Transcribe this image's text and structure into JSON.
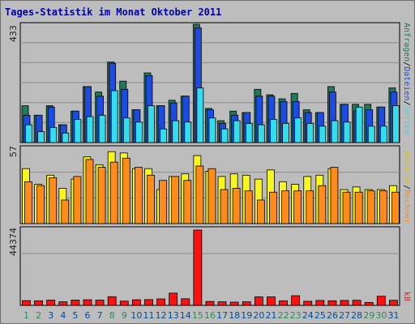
{
  "title": "Tages-Statistik im Monat Oktober 2011",
  "colors": {
    "weekday_label": "#004c99",
    "weekend_label": "#2e8b57",
    "anfragen": "#1f7a55",
    "dateien": "#1b4be0",
    "seiten": "#33ddee",
    "besuche": "#f7f71f",
    "rechner": "#ff8c1a",
    "kb": "#ff1010"
  },
  "right_labels": {
    "anfragen": "Anfragen",
    "dateien": "Dateien",
    "seiten": "Seiten",
    "besuche": "Besuche",
    "rechner": "Rechner",
    "kb": "kB"
  },
  "right_label_separator": "/",
  "chart_data": [
    {
      "type": "bar",
      "panel": "hits",
      "ymax_label": "433",
      "ylim": [
        0,
        433
      ],
      "categories": [
        "1",
        "2",
        "3",
        "4",
        "5",
        "6",
        "7",
        "8",
        "9",
        "10",
        "11",
        "12",
        "13",
        "14",
        "15",
        "16",
        "17",
        "18",
        "19",
        "20",
        "21",
        "22",
        "23",
        "24",
        "25",
        "26",
        "27",
        "28",
        "29",
        "30",
        "31"
      ],
      "weekend_days": [
        "1",
        "2",
        "8",
        "9",
        "15",
        "16",
        "22",
        "23",
        "29",
        "30"
      ],
      "series": [
        {
          "name": "Anfragen",
          "values": [
            135,
            100,
            135,
            65,
            115,
            205,
            185,
            295,
            225,
            120,
            255,
            135,
            155,
            170,
            433,
            125,
            80,
            115,
            110,
            195,
            175,
            160,
            180,
            120,
            110,
            205,
            140,
            140,
            140,
            130,
            200
          ]
        },
        {
          "name": "Dateien",
          "values": [
            100,
            100,
            130,
            65,
            115,
            205,
            170,
            290,
            195,
            120,
            245,
            135,
            145,
            170,
            420,
            120,
            70,
            100,
            110,
            170,
            170,
            150,
            150,
            110,
            110,
            185,
            140,
            115,
            120,
            130,
            185
          ]
        },
        {
          "name": "Seiten",
          "values": [
            65,
            40,
            55,
            35,
            85,
            95,
            100,
            190,
            90,
            75,
            135,
            50,
            80,
            75,
            200,
            90,
            50,
            80,
            70,
            65,
            85,
            70,
            90,
            70,
            60,
            80,
            75,
            130,
            60,
            60,
            135
          ]
        }
      ]
    },
    {
      "type": "bar",
      "panel": "visits",
      "ymax_label": "57",
      "ylim": [
        0,
        57
      ],
      "categories": [
        "1",
        "2",
        "3",
        "4",
        "5",
        "6",
        "7",
        "8",
        "9",
        "10",
        "11",
        "12",
        "13",
        "14",
        "15",
        "16",
        "17",
        "18",
        "19",
        "20",
        "21",
        "22",
        "23",
        "24",
        "25",
        "26",
        "27",
        "28",
        "29",
        "30",
        "31"
      ],
      "series": [
        {
          "name": "Besuche",
          "values": [
            42,
            30,
            37,
            27,
            34,
            51,
            45,
            55,
            54,
            42,
            42,
            26,
            36,
            38,
            52,
            40,
            36,
            38,
            37,
            34,
            41,
            32,
            30,
            36,
            37,
            42,
            26,
            28,
            26,
            26,
            29
          ]
        },
        {
          "name": "Rechner",
          "values": [
            32,
            29,
            35,
            18,
            36,
            49,
            43,
            47,
            50,
            43,
            37,
            33,
            36,
            33,
            44,
            42,
            26,
            27,
            25,
            18,
            24,
            25,
            25,
            25,
            29,
            43,
            24,
            24,
            25,
            25,
            24
          ]
        }
      ]
    },
    {
      "type": "bar",
      "panel": "traffic",
      "ymax_label": "44374",
      "ylim": [
        0,
        44374
      ],
      "categories": [
        "1",
        "2",
        "3",
        "4",
        "5",
        "6",
        "7",
        "8",
        "9",
        "10",
        "11",
        "12",
        "13",
        "14",
        "15",
        "16",
        "17",
        "18",
        "19",
        "20",
        "21",
        "22",
        "23",
        "24",
        "25",
        "26",
        "27",
        "28",
        "29",
        "30",
        "31"
      ],
      "series": [
        {
          "name": "kB",
          "values": [
            2800,
            2700,
            3100,
            2100,
            3100,
            3300,
            3100,
            5100,
            2500,
            3300,
            3400,
            3800,
            7200,
            3900,
            44374,
            2300,
            2100,
            1900,
            2100,
            5000,
            5000,
            2700,
            5700,
            2400,
            2900,
            2700,
            2900,
            3000,
            1700,
            5400,
            3000
          ]
        }
      ]
    }
  ]
}
